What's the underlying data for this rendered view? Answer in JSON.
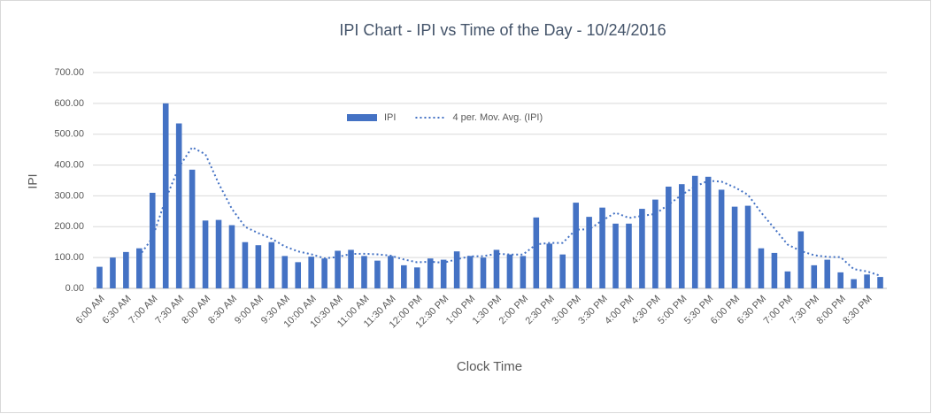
{
  "chart_data": {
    "type": "bar-line",
    "title": "IPI Chart - IPI vs Time of the Day - 10/24/2016",
    "x_label": "Clock Time",
    "y_label": "IPI",
    "categories": [
      "6:00 AM",
      null,
      "6:30 AM",
      null,
      "7:00 AM",
      null,
      "7:30 AM",
      null,
      "8:00 AM",
      null,
      "8:30 AM",
      null,
      "9:00 AM",
      null,
      "9:30 AM",
      null,
      "10:00 AM",
      null,
      "10:30 AM",
      null,
      "11:00 AM",
      null,
      "11:30 AM",
      null,
      "12:00 PM",
      null,
      "12:30 PM",
      null,
      "1:00 PM",
      null,
      "1:30 PM",
      null,
      "2:00 PM",
      null,
      "2:30 PM",
      null,
      "3:00 PM",
      null,
      "3:30 PM",
      null,
      "4:00 PM",
      null,
      "4:30 PM",
      null,
      "5:00 PM",
      null,
      "5:30 PM",
      null,
      "6:00 PM",
      null,
      "6:30 PM",
      null,
      "7:00 PM",
      null,
      "7:30 PM",
      null,
      "8:00 PM",
      null,
      "8:30 PM",
      null
    ],
    "series": [
      {
        "name": "IPI",
        "type": "bar",
        "color": "#4472c4",
        "values": [
          70,
          100,
          118,
          130,
          310,
          600,
          535,
          385,
          220,
          222,
          205,
          150,
          140,
          150,
          105,
          85,
          103,
          97,
          122,
          125,
          105,
          90,
          105,
          75,
          68,
          97,
          93,
          120,
          105,
          100,
          125,
          110,
          105,
          230,
          145,
          110,
          278,
          232,
          262,
          210,
          210,
          258,
          288,
          330,
          338,
          365,
          362,
          320,
          265,
          268,
          130,
          115,
          55,
          185,
          75,
          93,
          52,
          30,
          45,
          37
        ]
      },
      {
        "name": "4 per. Mov. Avg. (IPI)",
        "type": "line",
        "color": "#4472c4",
        "dash": true,
        "values": [
          null,
          null,
          null,
          104.5,
          164.5,
          289.5,
          393.75,
          457.5,
          435,
          340.5,
          258,
          199.25,
          179.25,
          161.25,
          136.25,
          120,
          110.75,
          97.5,
          101.75,
          111.75,
          112.25,
          110.5,
          106.25,
          93.75,
          84.5,
          86.25,
          83.25,
          94.5,
          103.75,
          104.5,
          112.5,
          110,
          110,
          142.5,
          147.5,
          147.5,
          190.75,
          191.25,
          220.5,
          245.5,
          228.5,
          235,
          241.5,
          271.5,
          303.5,
          330.25,
          348.75,
          346.25,
          328,
          303.75,
          245.75,
          194.5,
          142,
          121.25,
          107.5,
          102,
          101.25,
          62.5,
          55,
          41
        ]
      }
    ],
    "ylim": [
      0,
      700
    ],
    "yticks": [
      {
        "value": 0,
        "label": "0.00"
      },
      {
        "value": 100,
        "label": "100.00"
      },
      {
        "value": 200,
        "label": "200.00"
      },
      {
        "value": 300,
        "label": "300.00"
      },
      {
        "value": 400,
        "label": "400.00"
      },
      {
        "value": 500,
        "label": "500.00"
      },
      {
        "value": 600,
        "label": "600.00"
      },
      {
        "value": 700,
        "label": "700.00"
      }
    ],
    "grid": true,
    "legend": "top"
  }
}
